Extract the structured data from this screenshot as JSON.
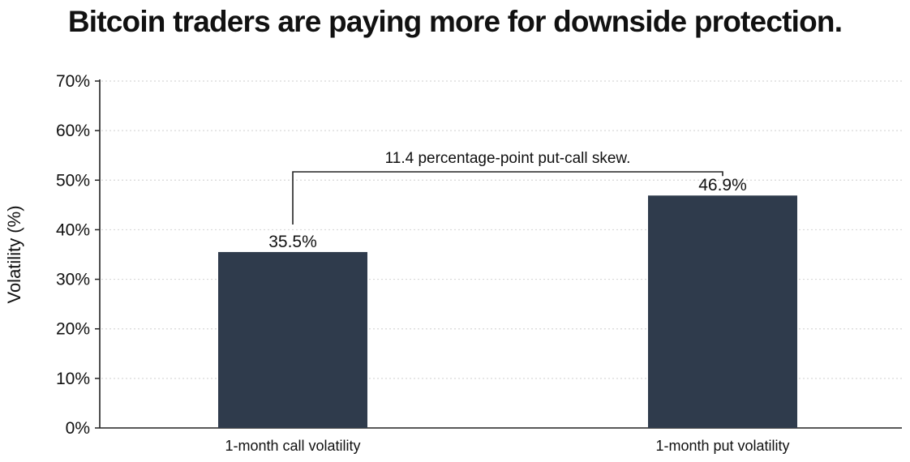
{
  "chart_data": {
    "type": "bar",
    "title": "Bitcoin traders are paying more for downside protection.",
    "xlabel": "",
    "ylabel": "Volatility (%)",
    "ylim": [
      0,
      70
    ],
    "yticks": [
      0,
      10,
      20,
      30,
      40,
      50,
      60,
      70
    ],
    "ytick_labels": [
      "0%",
      "10%",
      "20%",
      "30%",
      "40%",
      "50%",
      "60%",
      "70%"
    ],
    "categories": [
      "1-month call volatility",
      "1-month put volatility"
    ],
    "values": [
      35.5,
      46.9
    ],
    "value_labels": [
      "35.5%",
      "46.9%"
    ],
    "grid": "horizontal-dotted",
    "annotation": {
      "text": "11.4 percentage-point put-call skew.",
      "from_category": 0,
      "to_category": 1
    },
    "colors": {
      "bar": "#2f3b4c",
      "axis": "#222222",
      "grid": "#d8d8d8",
      "text": "#111111"
    }
  }
}
